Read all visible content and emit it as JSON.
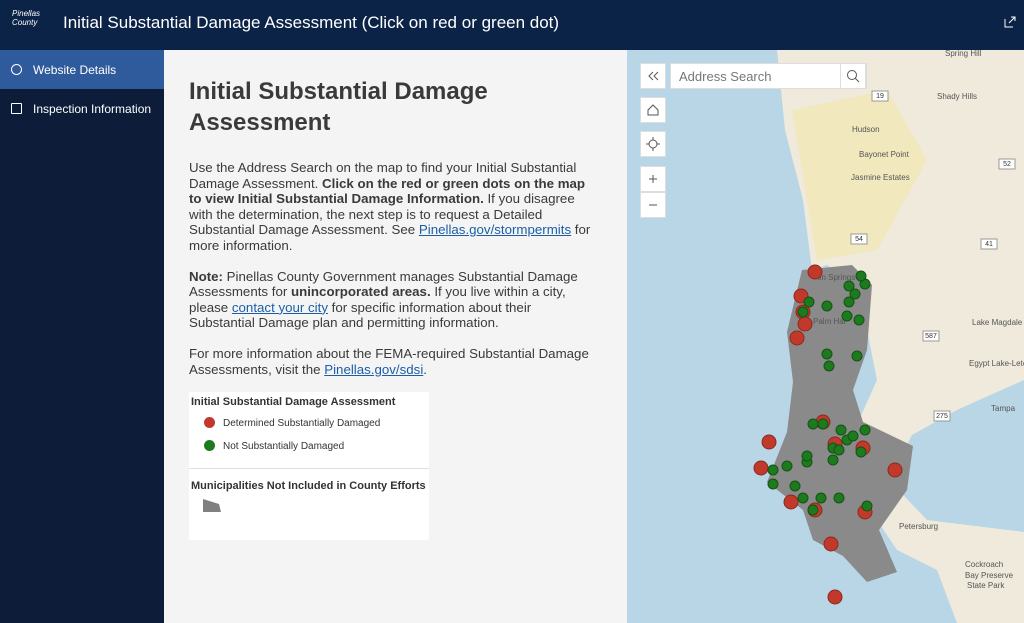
{
  "header": {
    "logo": [
      "Pinellas",
      "County"
    ],
    "title": "Initial Substantial Damage Assessment (Click on red or green dot)"
  },
  "sidebar": {
    "items": [
      "Website Details",
      "Inspection Information"
    ]
  },
  "content": {
    "heading": "Initial Substantial Damage Assessment",
    "paragraphs": [
      [
        "Use the Address Search on the map to find your Initial Substantial Damage Assessment. ",
        "Click on the red or green dots on the map to view Initial Substantial Damage Information.",
        " If you disagree with the determination, the next step is to request a Detailed Substantial Damage Assessment. See ",
        "Pinellas.gov/stormpermits",
        " for more information."
      ],
      [
        "Note:",
        " Pinellas County Government manages Substantial Damage Assessments for ",
        "unincorporated areas.",
        " If you live within a city, please ",
        "contact your city",
        " for specific information about their Substantial Damage plan and permitting information."
      ],
      [
        "For more information about the FEMA-required Substantial Damage Assessments, visit the ",
        "Pinellas.gov/sdsi",
        "."
      ]
    ],
    "legend": {
      "title": "Initial Substantial Damage Assessment",
      "items": [
        "Determined Substantially Damaged",
        "Not Substantially Damaged"
      ],
      "section_title": "Municipalities Not Included in County Efforts"
    }
  },
  "map": {
    "search_placeholder": "Address Search",
    "labels": [
      "Spring Hill",
      "Shady Hills",
      "Hudson",
      "Bayonet Point",
      "Jasmine Estates",
      "Lake Magdale",
      "Egypt Lake-Leto",
      "Tampa",
      "Petersburg",
      "Cockroach",
      "Bay Preserve",
      "State Park",
      "Palm Har",
      "on Springs"
    ],
    "shields": [
      "19",
      "52",
      "54",
      "41",
      "587",
      "275"
    ]
  }
}
